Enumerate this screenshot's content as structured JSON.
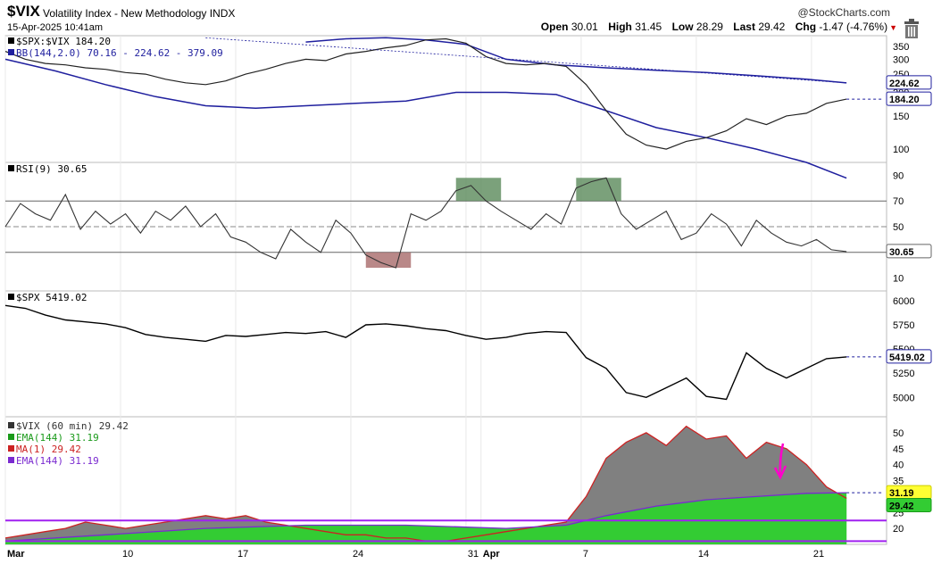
{
  "header": {
    "symbol": "$VIX",
    "description": "Volatility Index - New Methodology INDX",
    "timestamp": "15-Apr-2025 10:41am",
    "brand": "@StockCharts.com",
    "open_label": "Open",
    "open": "30.01",
    "high_label": "High",
    "high": "31.45",
    "low_label": "Low",
    "low": "28.29",
    "last_label": "Last",
    "last": "29.42",
    "chg_label": "Chg",
    "chg": "-1.47 (-4.76%)"
  },
  "chart_data": [
    {
      "type": "line",
      "panel": "ratio",
      "legend": [
        "$SPX:$VIX 184.20",
        "BB(144,2.0) 70.16 - 224.62 - 379.09"
      ],
      "yticks": [
        100,
        150,
        200,
        250,
        300,
        350
      ],
      "yscale": "log",
      "price_tags": [
        "224.62",
        "184.20"
      ],
      "series": [
        {
          "name": "$SPX:$VIX",
          "x": [
            0,
            4,
            8,
            12,
            16,
            20,
            24,
            28,
            32,
            36,
            40,
            44,
            48,
            52,
            56,
            60,
            64,
            68,
            72,
            76,
            80,
            84,
            88,
            92,
            96,
            100,
            104,
            108,
            112,
            116,
            120,
            124,
            128,
            132,
            136,
            140,
            144,
            148,
            152,
            156,
            160,
            164,
            168
          ],
          "values": [
            330,
            300,
            285,
            280,
            270,
            265,
            255,
            250,
            235,
            225,
            220,
            230,
            250,
            265,
            285,
            300,
            295,
            320,
            330,
            345,
            355,
            380,
            385,
            365,
            310,
            285,
            280,
            285,
            275,
            220,
            160,
            120,
            105,
            100,
            110,
            115,
            125,
            145,
            135,
            150,
            155,
            175,
            184.2
          ]
        },
        {
          "name": "BB upper",
          "x": [
            60,
            68,
            76,
            84,
            92,
            100,
            110,
            120,
            130,
            140,
            150,
            160,
            168
          ],
          "values": [
            370,
            385,
            390,
            380,
            360,
            300,
            280,
            270,
            262,
            255,
            245,
            235,
            224.62
          ]
        },
        {
          "name": "BB lower",
          "x": [
            0,
            10,
            20,
            30,
            40,
            50,
            60,
            70,
            80,
            90,
            100,
            110,
            120,
            130,
            140,
            150,
            160,
            168
          ],
          "values": [
            300,
            260,
            220,
            190,
            170,
            165,
            170,
            175,
            180,
            200,
            200,
            195,
            160,
            130,
            115,
            100,
            85,
            70.16
          ]
        }
      ]
    },
    {
      "type": "line",
      "panel": "rsi",
      "legend": [
        "RSI(9) 30.65"
      ],
      "yticks": [
        10,
        30,
        50,
        70,
        90
      ],
      "levels": [
        70,
        50,
        30
      ],
      "price_tags": [
        "30.65"
      ],
      "series": [
        {
          "name": "RSI(9)",
          "x": [
            0,
            3,
            6,
            9,
            12,
            15,
            18,
            21,
            24,
            27,
            30,
            33,
            36,
            39,
            42,
            45,
            48,
            51,
            54,
            57,
            60,
            63,
            66,
            69,
            72,
            75,
            78,
            81,
            84,
            87,
            90,
            93,
            96,
            99,
            102,
            105,
            108,
            111,
            114,
            117,
            120,
            123,
            126,
            129,
            132,
            135,
            138,
            141,
            144,
            147,
            150,
            153,
            156,
            159,
            162,
            165,
            168
          ],
          "values": [
            50,
            68,
            60,
            55,
            75,
            48,
            62,
            52,
            60,
            45,
            62,
            55,
            66,
            50,
            60,
            42,
            38,
            30,
            25,
            48,
            38,
            30,
            55,
            45,
            28,
            22,
            18,
            60,
            55,
            62,
            78,
            82,
            70,
            62,
            55,
            48,
            60,
            52,
            80,
            85,
            88,
            60,
            48,
            55,
            62,
            40,
            45,
            60,
            52,
            35,
            55,
            45,
            38,
            35,
            40,
            32,
            30.65
          ]
        }
      ]
    },
    {
      "type": "line",
      "panel": "spx",
      "legend": [
        "$SPX 5419.02"
      ],
      "yticks": [
        5000,
        5250,
        5500,
        5750,
        6000
      ],
      "price_tags": [
        "5419.02"
      ],
      "series": [
        {
          "name": "$SPX",
          "x": [
            0,
            4,
            8,
            12,
            16,
            20,
            24,
            28,
            32,
            36,
            40,
            44,
            48,
            52,
            56,
            60,
            64,
            68,
            72,
            76,
            80,
            84,
            88,
            92,
            96,
            100,
            104,
            108,
            112,
            116,
            120,
            124,
            128,
            132,
            136,
            140,
            144,
            148,
            152,
            156,
            160,
            164,
            168
          ],
          "values": [
            5950,
            5920,
            5850,
            5800,
            5780,
            5760,
            5720,
            5650,
            5620,
            5600,
            5580,
            5640,
            5630,
            5650,
            5670,
            5660,
            5680,
            5620,
            5750,
            5760,
            5740,
            5710,
            5690,
            5640,
            5600,
            5620,
            5660,
            5680,
            5670,
            5410,
            5300,
            5050,
            5000,
            5100,
            5200,
            5010,
            4980,
            5460,
            5300,
            5200,
            5300,
            5400,
            5419.02
          ]
        }
      ]
    },
    {
      "type": "area",
      "panel": "vix",
      "legend": [
        "$VIX (60 min) 29.42",
        "EMA(144) 31.19",
        "MA(1) 29.42",
        "EMA(144) 31.19"
      ],
      "yticks": [
        20,
        25,
        30,
        35,
        40,
        45,
        50
      ],
      "price_tags": [
        "31.19",
        "29.42"
      ],
      "series": [
        {
          "name": "$VIX (60 min)",
          "x": [
            0,
            4,
            8,
            12,
            16,
            20,
            24,
            28,
            32,
            36,
            40,
            44,
            48,
            52,
            56,
            60,
            64,
            68,
            72,
            76,
            80,
            84,
            88,
            92,
            96,
            100,
            104,
            108,
            112,
            116,
            120,
            124,
            128,
            132,
            136,
            140,
            144,
            148,
            152,
            156,
            160,
            164,
            168
          ],
          "values": [
            17,
            18,
            19,
            20,
            22,
            21,
            20,
            21,
            22,
            23,
            24,
            23,
            24,
            22,
            21,
            20,
            19,
            18,
            18,
            17,
            17,
            16,
            16,
            17,
            18,
            19,
            20,
            21,
            22,
            30,
            42,
            47,
            50,
            46,
            52,
            48,
            49,
            42,
            47,
            45,
            40,
            33,
            29.42
          ]
        },
        {
          "name": "EMA(144)",
          "x": [
            0,
            20,
            40,
            60,
            80,
            100,
            112,
            120,
            130,
            140,
            150,
            160,
            168
          ],
          "values": [
            16,
            18,
            20,
            21,
            21,
            20,
            21,
            24,
            27,
            29,
            30,
            31,
            31.19
          ]
        }
      ]
    }
  ],
  "x_axis": {
    "labels": [
      "Mar",
      "10",
      "17",
      "24",
      "31",
      "Apr",
      "7",
      "14",
      "21"
    ]
  },
  "colors": {
    "price_line": "#000000",
    "bb": "#1f1f9e",
    "rsi_overbought": "#5a8a5a",
    "rsi_oversold": "#a86a6a",
    "vix_fill": "#808080",
    "ema_fill": "#33cc33",
    "ma_line": "#cc2222",
    "ema_line": "#7a2ad0",
    "level_line": "#a020f0",
    "annotation": "#ff00cc"
  }
}
